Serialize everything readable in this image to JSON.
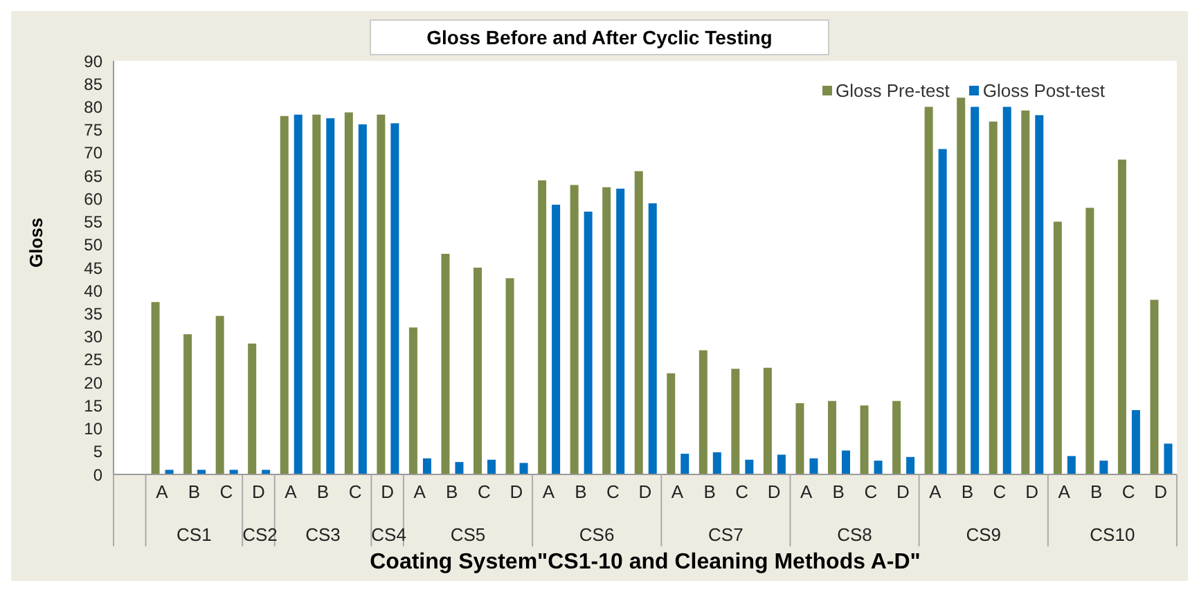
{
  "chart_data": {
    "type": "bar",
    "title": "Gloss Before and After Cyclic Testing",
    "xlabel": "Coating System\"CS1-10 and Cleaning Methods A-D\"",
    "ylabel": "Gloss",
    "categories": [
      null,
      "A",
      "B",
      "C",
      "D",
      "A",
      "B",
      "C",
      "D",
      "A",
      "B",
      "C",
      "D",
      "A",
      "B",
      "C",
      "D",
      "A",
      "B",
      "C",
      "D",
      "A",
      "B",
      "C",
      "D",
      "A",
      "B",
      "C",
      "D",
      "A",
      "B",
      "C",
      "D"
    ],
    "series": [
      {
        "name": "Gloss Pre-test",
        "color": "#7d8c4a",
        "values": [
          null,
          37.5,
          30.5,
          34.5,
          28.5,
          78,
          78.3,
          78.8,
          78.3,
          32,
          48,
          45,
          42.7,
          64,
          63,
          62.5,
          66,
          22,
          27,
          23,
          23.2,
          15.5,
          16,
          15,
          16,
          80,
          82,
          76.8,
          79.2,
          55,
          58,
          68.5,
          38
        ]
      },
      {
        "name": "Gloss Post-test",
        "color": "#0070c0",
        "values": [
          null,
          1,
          1,
          1,
          1,
          78.3,
          77.5,
          76.2,
          76.4,
          3.5,
          2.7,
          3.2,
          2.5,
          58.7,
          57.2,
          62.2,
          59,
          4.5,
          4.8,
          3.2,
          4.3,
          3.5,
          5.2,
          3,
          3.8,
          70.8,
          80,
          80,
          78.2,
          4,
          3,
          14,
          6.7
        ]
      }
    ],
    "annotations": [
      "CS1",
      "CS2",
      "CS3",
      "CS4",
      "CS5",
      "CS6",
      "CS7",
      "CS8",
      "CS9",
      "CS10"
    ],
    "ylim": [
      0,
      90
    ],
    "yticks": [
      0,
      5,
      10,
      15,
      20,
      25,
      30,
      35,
      40,
      45,
      50,
      55,
      60,
      65,
      70,
      75,
      80,
      85,
      90
    ],
    "legend": "top right"
  }
}
